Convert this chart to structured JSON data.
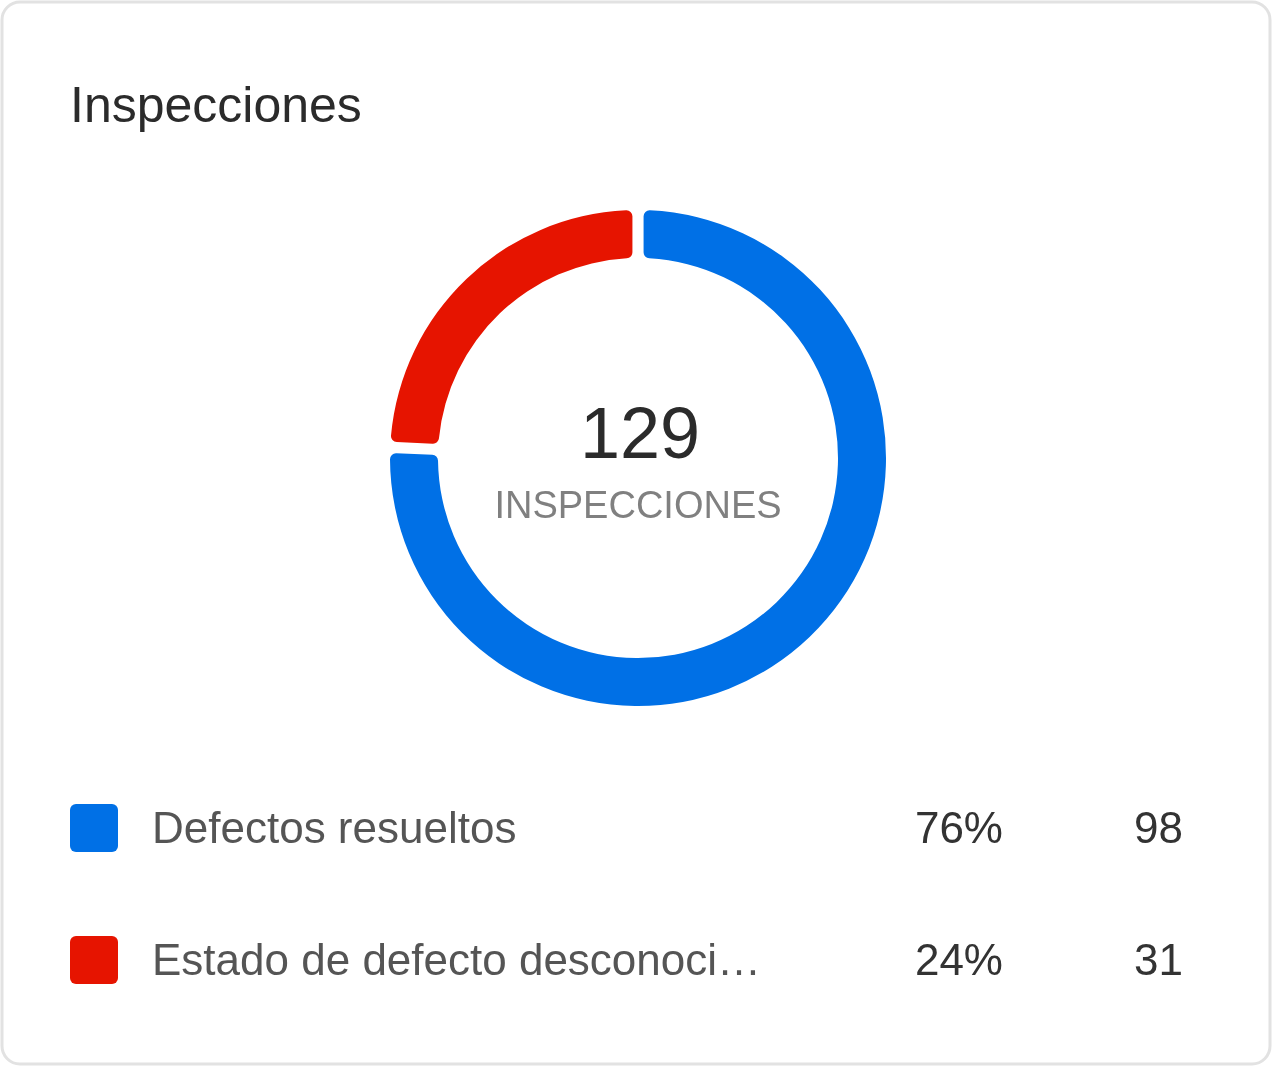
{
  "chart_data": {
    "type": "donut",
    "title": "Inspecciones",
    "categories": [
      "Defectos resueltos",
      "Estado de defecto desconoci…"
    ],
    "values": [
      98,
      31
    ],
    "colors": [
      "#0070e6",
      "#e61400"
    ],
    "data_labels": true,
    "legend": "bottom",
    "annotations": [
      "129",
      "INSPECCIONES",
      "76%",
      "24%"
    ]
  }
}
